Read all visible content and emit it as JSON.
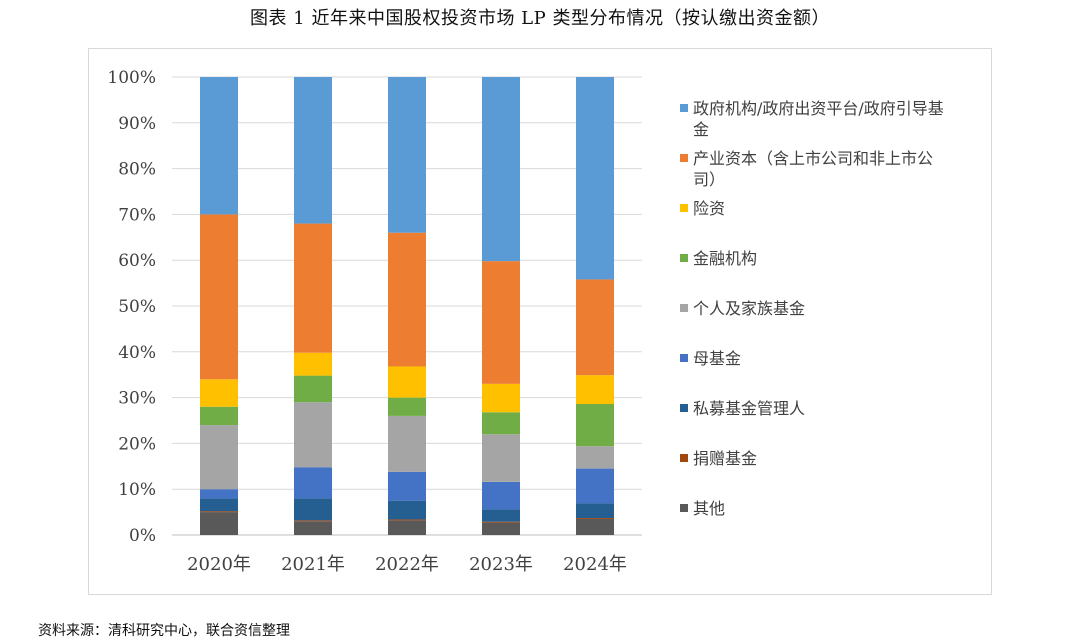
{
  "caption": "图表 1    近年来中国股权投资市场 LP 类型分布情况（按认缴出资金额）",
  "source": "资料来源：清科研究中心，联合资信整理",
  "colors": {
    "gov": "#5b9bd5",
    "industry": "#ed7d31",
    "insurance": "#ffc000",
    "finance": "#70ad47",
    "individual": "#a5a5a5",
    "fof": "#4472c4",
    "pe_manager": "#255e91",
    "donation": "#9e480e",
    "other": "#595959",
    "grid": "#d9d9d9",
    "axis": "#bfbfbf"
  },
  "chart_data": {
    "type": "bar",
    "stacked": true,
    "percent": true,
    "title": "近年来中国股权投资市场 LP 类型分布情况（按认缴出资金额）",
    "xlabel": "",
    "ylabel": "",
    "ylim": [
      0,
      100
    ],
    "yticks": [
      "0%",
      "10%",
      "20%",
      "30%",
      "40%",
      "50%",
      "60%",
      "70%",
      "80%",
      "90%",
      "100%"
    ],
    "categories": [
      "2020年",
      "2021年",
      "2022年",
      "2023年",
      "2024年"
    ],
    "legend_position": "right",
    "series": [
      {
        "key": "other",
        "name": "其他",
        "values": [
          5.0,
          3.0,
          3.2,
          2.7,
          3.5
        ]
      },
      {
        "key": "donation",
        "name": "捐赠基金",
        "values": [
          0.2,
          0.2,
          0.2,
          0.2,
          0.2
        ]
      },
      {
        "key": "pe_manager",
        "name": "私募基金管理人",
        "values": [
          2.8,
          4.8,
          4.1,
          2.7,
          3.2
        ]
      },
      {
        "key": "fof",
        "name": "母基金",
        "values": [
          2.0,
          6.8,
          6.3,
          6.0,
          7.6
        ]
      },
      {
        "key": "individual",
        "name": "个人及家族基金",
        "values": [
          14.0,
          14.2,
          12.2,
          10.4,
          4.9
        ]
      },
      {
        "key": "finance",
        "name": "金融机构",
        "values": [
          4.0,
          5.8,
          4.0,
          4.8,
          9.2
        ]
      },
      {
        "key": "insurance",
        "name": "险资",
        "values": [
          6.0,
          5.0,
          6.8,
          6.2,
          6.3
        ]
      },
      {
        "key": "industry",
        "name": "产业资本（含上市公司和非上市公司）",
        "values": [
          36.0,
          28.2,
          29.2,
          26.8,
          20.9
        ]
      },
      {
        "key": "gov",
        "name": "政府机构/政府出资平台/政府引导基金",
        "values": [
          30.0,
          32.0,
          34.0,
          40.2,
          44.2
        ]
      }
    ],
    "legend_order": [
      "gov",
      "industry",
      "insurance",
      "finance",
      "individual",
      "fof",
      "pe_manager",
      "donation",
      "other"
    ],
    "legend_lines": {
      "gov": [
        "政府机构/政府出资平台/政府引导基",
        "金"
      ],
      "industry": [
        "产业资本（含上市公司和非上市公",
        "司）"
      ]
    }
  }
}
